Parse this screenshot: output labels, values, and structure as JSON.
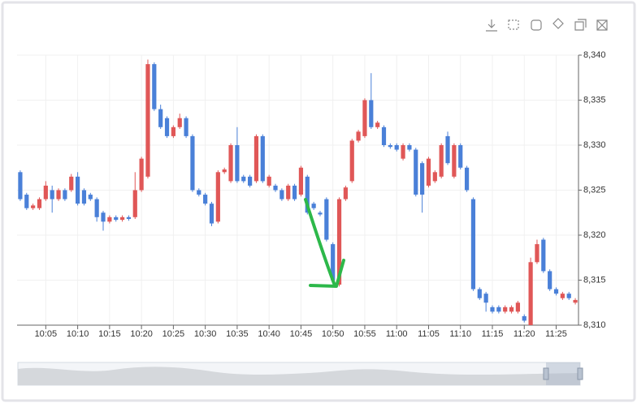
{
  "chart_data": {
    "type": "candlestick",
    "categories": [
      null,
      null,
      null,
      null,
      "10:05",
      null,
      null,
      null,
      null,
      "10:10",
      null,
      null,
      null,
      null,
      "10:15",
      null,
      null,
      null,
      null,
      "10:20",
      null,
      null,
      null,
      null,
      "10:25",
      null,
      null,
      null,
      null,
      "10:30",
      null,
      null,
      null,
      null,
      "10:35",
      null,
      null,
      null,
      null,
      "10:40",
      null,
      null,
      null,
      null,
      "10:45",
      null,
      null,
      null,
      null,
      "10:50",
      null,
      null,
      null,
      null,
      "10:55",
      null,
      null,
      null,
      null,
      "11:00",
      null,
      null,
      null,
      null,
      "11:05",
      null,
      null,
      null,
      null,
      "11:10",
      null,
      null,
      null,
      null,
      "11:15",
      null,
      null,
      null,
      null,
      "11:20",
      null,
      null,
      null,
      null,
      "11:25",
      null,
      null,
      null
    ],
    "open": [
      8327,
      8324.5,
      8323,
      8323,
      8324,
      8325,
      8324,
      8325,
      8325,
      8326.5,
      8325,
      8324.5,
      8324,
      8322.5,
      8321.5,
      8322,
      8321.7,
      8322,
      8322,
      8325,
      8326.5,
      8339,
      8334,
      8333,
      8331,
      8332,
      8333,
      8331,
      8325,
      8324.5,
      8323.5,
      8321.5,
      8327,
      8326,
      8330,
      8326.5,
      8326.5,
      8326,
      8331,
      8325.5,
      8325.5,
      8325,
      8324,
      8325.5,
      8324.5,
      8326.5,
      8323.5,
      8322.5,
      8324,
      8319,
      8314.5,
      8324,
      8326,
      8330.5,
      8331,
      8335,
      8332,
      8332,
      8330,
      8330,
      8328.5,
      8330,
      8329.5,
      8328,
      8325.5,
      8326,
      8326.5,
      8331,
      8326.5,
      8330,
      8327.5,
      8324,
      8314,
      8313.5,
      8312,
      8312,
      8311.5,
      8311.5,
      8311.5,
      8311,
      8310,
      8317,
      8319.5,
      8316,
      8314,
      8313,
      8313.5,
      8312.5
    ],
    "high": [
      8327.2,
      8324.7,
      8323.5,
      8324.2,
      8326,
      8325.5,
      8325.2,
      8325.2,
      8326.8,
      8327,
      8325.2,
      8324.7,
      8324.2,
      8322.7,
      8322.2,
      8322.2,
      8322.2,
      8322.2,
      8327,
      8328.7,
      8339.5,
      8339.2,
      8334.5,
      8333.2,
      8332.2,
      8333.5,
      8333.2,
      8331.2,
      8325.2,
      8324.7,
      8323.7,
      8327.2,
      8327.5,
      8330.2,
      8332,
      8326.7,
      8326.7,
      8331.2,
      8331.2,
      8326.7,
      8325.7,
      8325.2,
      8325.7,
      8325.7,
      8327.7,
      8326.7,
      8323.7,
      8322.7,
      8324.2,
      8319.2,
      8324.2,
      8325.5,
      8330.7,
      8331.7,
      8335.2,
      8338,
      8332.7,
      8332.2,
      8330.2,
      8330.2,
      8330.2,
      8330.2,
      8329.7,
      8328.2,
      8328.7,
      8327.2,
      8330.2,
      8331.5,
      8330.2,
      8330.2,
      8327.7,
      8324.2,
      8314.2,
      8313.7,
      8312.2,
      8312.2,
      8312.2,
      8312.2,
      8312.7,
      8311.2,
      8317.5,
      8319.5,
      8319.7,
      8316.2,
      8314.2,
      8313.7,
      8313.7,
      8313
    ],
    "low": [
      8323.8,
      8322.8,
      8322.8,
      8322.8,
      8323.8,
      8322.5,
      8323.8,
      8323.8,
      8324.8,
      8323.3,
      8323.3,
      8323.8,
      8321.5,
      8320.5,
      8321.3,
      8321.5,
      8321.5,
      8321.6,
      8321.8,
      8324.8,
      8326.3,
      8333.8,
      8331.8,
      8330.8,
      8330.8,
      8331.8,
      8330.8,
      8324.8,
      8324.3,
      8323.3,
      8321,
      8321.3,
      8326.8,
      8325.8,
      8325.8,
      8325.8,
      8325.3,
      8325.8,
      8325.8,
      8325.3,
      8324.8,
      8323.8,
      8323.8,
      8323.8,
      8324.3,
      8322.3,
      8322.8,
      8322.1,
      8319.3,
      8314.8,
      8314.3,
      8323.8,
      8325.8,
      8330.3,
      8330.8,
      8331.8,
      8331.8,
      8329.8,
      8329.6,
      8329.3,
      8328.3,
      8329.3,
      8324.3,
      8322.5,
      8325.3,
      8325.8,
      8326.3,
      8327.8,
      8326.3,
      8327.3,
      8324.8,
      8313.8,
      8312.8,
      8311.5,
      8311.3,
      8311.3,
      8311.3,
      8311.3,
      8311.3,
      8310.3,
      8310,
      8316.8,
      8315.8,
      8313.8,
      8313.3,
      8312.8,
      8312.8,
      8312.3
    ],
    "close": [
      8324,
      8323,
      8323.3,
      8324,
      8325.5,
      8324,
      8325,
      8324,
      8326.5,
      8323.5,
      8323.5,
      8324,
      8322,
      8321.5,
      8322,
      8321.7,
      8322,
      8321.8,
      8325,
      8328.5,
      8339,
      8334,
      8332,
      8331,
      8332,
      8333,
      8331,
      8325,
      8324.5,
      8323.5,
      8321.3,
      8327,
      8327.3,
      8330,
      8326,
      8326,
      8325.5,
      8331,
      8326,
      8326.5,
      8325,
      8324,
      8325.5,
      8324,
      8327.5,
      8322.5,
      8323,
      8322.3,
      8319.5,
      8315,
      8324,
      8325.3,
      8330.5,
      8331.5,
      8335,
      8332,
      8332.5,
      8330,
      8329.8,
      8329.5,
      8330,
      8329.5,
      8324.5,
      8324.5,
      8328.5,
      8327,
      8330,
      8328,
      8330,
      8327.5,
      8325,
      8314,
      8313,
      8312.5,
      8311.5,
      8311.5,
      8312,
      8312,
      8312.5,
      8310.5,
      8317,
      8319,
      8316,
      8314,
      8313.5,
      8313.5,
      8313,
      8312.8
    ],
    "up_color": "#e05757",
    "down_color": "#4a80d8",
    "ylim": [
      8310,
      8340
    ],
    "yticks": [
      {
        "value": 8310,
        "label": "8,310"
      },
      {
        "value": 8315,
        "label": "8,315"
      },
      {
        "value": 8320,
        "label": "8,320"
      },
      {
        "value": 8325,
        "label": "8,325"
      },
      {
        "value": 8330,
        "label": "8,330"
      },
      {
        "value": 8335,
        "label": "8,335"
      },
      {
        "value": 8340,
        "label": "8,340"
      }
    ],
    "grid": true
  }
}
